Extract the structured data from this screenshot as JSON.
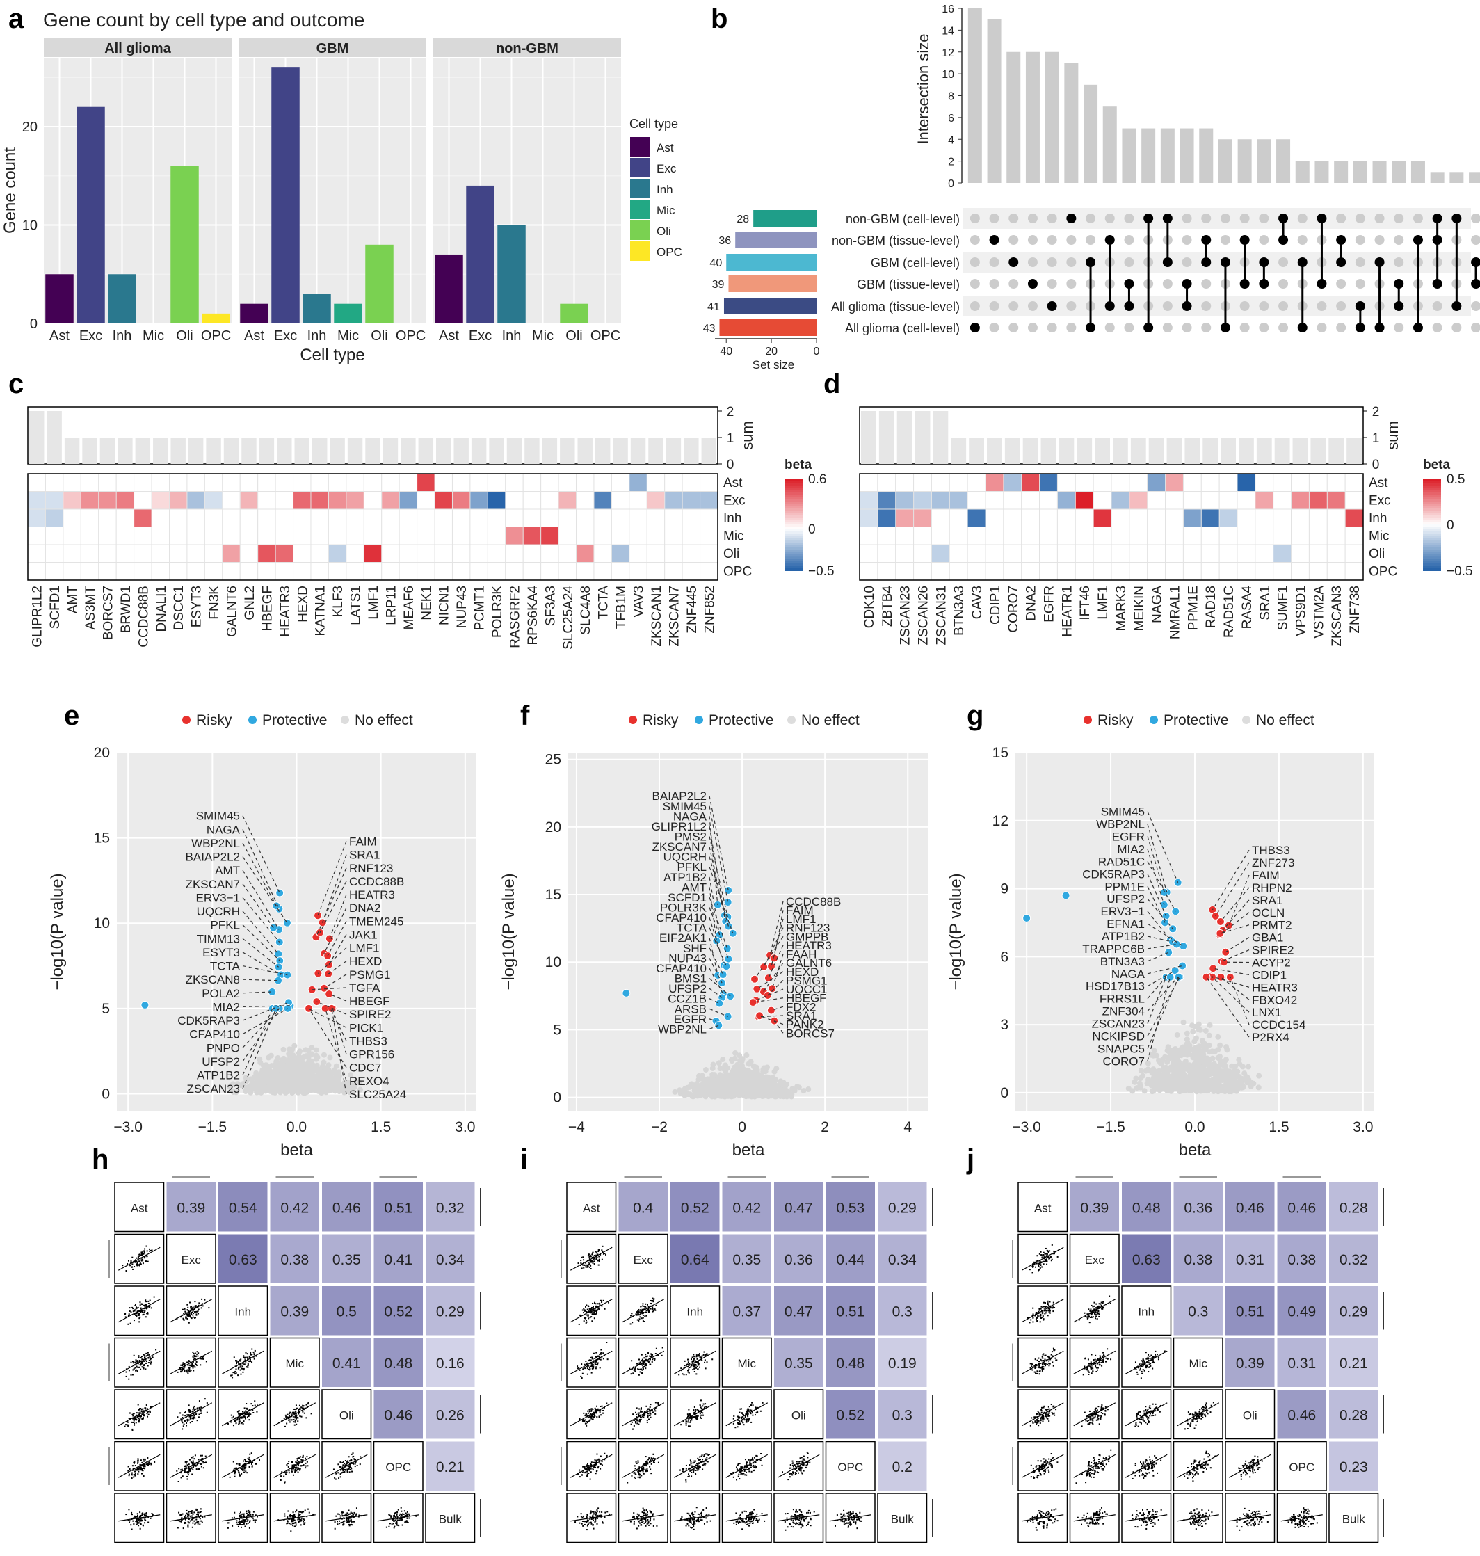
{
  "panel_labels": [
    "a",
    "b",
    "c",
    "d",
    "e",
    "f",
    "g",
    "h",
    "i",
    "j"
  ],
  "panel_a": {
    "title": "Gene count by cell type and outcome",
    "xlabel": "Cell type",
    "ylabel": "Gene count",
    "facets": [
      "All glioma",
      "GBM",
      "non-GBM"
    ],
    "categories": [
      "Ast",
      "Exc",
      "Inh",
      "Mic",
      "Oli",
      "OPC"
    ],
    "yticks": [
      "0",
      "10",
      "20"
    ],
    "legend_title": "Cell type",
    "colors": {
      "Ast": "#440154",
      "Exc": "#414487",
      "Inh": "#2a788e",
      "Mic": "#22a884",
      "Oli": "#7ad151",
      "OPC": "#fde725"
    }
  },
  "panel_b": {
    "ylabel": "Intersection size",
    "yticks": [
      "0",
      "2",
      "4",
      "6",
      "8",
      "10",
      "12",
      "14",
      "16"
    ],
    "set_size_label": "Set size",
    "set_size_ticks": [
      "40",
      "20",
      "0"
    ],
    "sets": [
      {
        "name": "non-GBM (cell-level)",
        "size": "28",
        "color": "#1f9e89"
      },
      {
        "name": "non-GBM (tissue-level)",
        "size": "36",
        "color": "#8e94bf"
      },
      {
        "name": "GBM (cell-level)",
        "size": "40",
        "color": "#4cb8d1"
      },
      {
        "name": "GBM (tissue-level)",
        "size": "39",
        "color": "#f0987a"
      },
      {
        "name": "All glioma (tissue-level)",
        "size": "41",
        "color": "#3b4b84"
      },
      {
        "name": "All glioma (cell-level)",
        "size": "43",
        "color": "#e64b35"
      }
    ]
  },
  "panel_c": {
    "sum_label": "sum",
    "sum_ticks": [
      "0",
      "1",
      "2"
    ],
    "legend_title": "beta",
    "legend_ticks": [
      "0.6",
      "0",
      "−0.5"
    ],
    "rows": [
      "Ast",
      "Exc",
      "Inh",
      "Mic",
      "Oli",
      "OPC"
    ],
    "genes": [
      "GLIPR1L2",
      "SCFD1",
      "AMT",
      "AS3MT",
      "BORCS7",
      "BRWD1",
      "CCDC88B",
      "DNALI1",
      "DSCC1",
      "ESYT3",
      "FN3K",
      "GALNT6",
      "GNL2",
      "HBEGF",
      "HEATR3",
      "HEXD",
      "KATNA1",
      "KLF3",
      "LATS1",
      "LMF1",
      "LRP11",
      "MEAF6",
      "NEK1",
      "NICN1",
      "NUP43",
      "PCMT1",
      "POLR3K",
      "RASGRF2",
      "RPS6KA4",
      "SF3A3",
      "SLC25A24",
      "SLC4A8",
      "TCTA",
      "TFB1M",
      "VAV3",
      "ZKSCAN1",
      "ZKSCAN7",
      "ZNF445",
      "ZNF852"
    ]
  },
  "panel_d": {
    "sum_label": "sum",
    "sum_ticks": [
      "0",
      "1",
      "2"
    ],
    "legend_title": "beta",
    "legend_ticks": [
      "0.5",
      "0",
      "−0.5"
    ],
    "rows": [
      "Ast",
      "Exc",
      "Inh",
      "Mic",
      "Oli",
      "OPC"
    ],
    "genes": [
      "CDK10",
      "ZBTB4",
      "ZSCAN23",
      "ZSCAN26",
      "ZSCAN31",
      "BTN3A3",
      "CAV3",
      "CDIP1",
      "CORO7",
      "DNA2",
      "EGFR",
      "HEATR1",
      "IFT46",
      "LMF1",
      "MARK3",
      "MEIKIN",
      "NAGA",
      "NMRAL1",
      "PPM1E",
      "RAD18",
      "RAD51C",
      "RASA4",
      "SRA1",
      "SUMF1",
      "VPS9D1",
      "VSTM2A",
      "ZKSCAN3",
      "ZNF738"
    ]
  },
  "legend_volcano": {
    "risky": "Risky",
    "protective": "Protective",
    "noeffect": "No effect"
  },
  "panel_e": {
    "xlabel": "beta",
    "ylabel": "−log10(P value)",
    "xticks": [
      "−3.0",
      "−1.5",
      "0.0",
      "1.5",
      "3.0"
    ],
    "yticks": [
      "0",
      "5",
      "10",
      "15",
      "20"
    ],
    "left_labels": [
      "SMIM45",
      "NAGA",
      "WBP2NL",
      "BAIAP2L2",
      "AMT",
      "ZKSCAN7",
      "ERV3−1",
      "UQCRH",
      "PFKL",
      "TIMM13",
      "ESYT3",
      "TCTA",
      "ZKSCAN8",
      "POLA2",
      "MIA2",
      "CDK5RAP3",
      "CFAP410",
      "PNPO",
      "UFSP2",
      "ATP1B2",
      "ZSCAN23"
    ],
    "right_labels": [
      "FAIM",
      "SRA1",
      "RNF123",
      "CCDC88B",
      "HEATR3",
      "DNA2",
      "TMEM245",
      "JAK1",
      "LMF1",
      "HEXD",
      "PSMG1",
      "TGFA",
      "HBEGF",
      "SPIRE2",
      "PICK1",
      "THBS3",
      "GPR156",
      "CDC7",
      "REXO4",
      "SLC25A24"
    ]
  },
  "panel_f": {
    "xlabel": "beta",
    "ylabel": "−log10(P value)",
    "xticks": [
      "−4",
      "−2",
      "0",
      "2",
      "4"
    ],
    "yticks": [
      "0",
      "5",
      "10",
      "15",
      "20",
      "25"
    ],
    "top_label": "BAIAP2L2",
    "left_labels": [
      "SMIM45",
      "NAGA",
      "GLIPR1L2",
      "PMS2",
      "ZKSCAN7",
      "UQCRH",
      "PFKL",
      "ATP1B2",
      "AMT",
      "SCFD1",
      "POLR3K",
      "CFAP410",
      "TCTA",
      "EIF2AK1",
      "SHF",
      "NUP43",
      "CFAP410",
      "BMS1",
      "UFSP2",
      "CCZ1B",
      "ARSB",
      "EGFR",
      "WBP2NL"
    ],
    "right_labels": [
      "CCDC88B",
      "FAIM",
      "LMF1",
      "RNF123",
      "GMPPB",
      "HEATR3",
      "FAAH",
      "GALNT6",
      "HEXD",
      "PSMG1",
      "UQCC1",
      "HBEGF",
      "FDX2",
      "SRA1",
      "PANK2",
      "BORCS7"
    ]
  },
  "panel_g": {
    "xlabel": "beta",
    "ylabel": "−log10(P value)",
    "xticks": [
      "−3.0",
      "−1.5",
      "0.0",
      "1.5",
      "3.0"
    ],
    "yticks": [
      "0",
      "3",
      "6",
      "9",
      "12",
      "15"
    ],
    "left_labels": [
      "SMIM45",
      "WBP2NL",
      "EGFR",
      "MIA2",
      "RAD51C",
      "CDK5RAP3",
      "PPM1E",
      "UFSP2",
      "ERV3−1",
      "EFNA1",
      "ATP1B2",
      "TRAPPC6B",
      "BTN3A3",
      "NAGA",
      "HSD17B13",
      "FRRS1L",
      "ZNF304",
      "ZSCAN23",
      "NCKIPSD",
      "SNAPC5",
      "CORO7"
    ],
    "right_labels": [
      "THBS3",
      "ZNF273",
      "FAIM",
      "RHPN2",
      "SRA1",
      "OCLN",
      "PRMT2",
      "GBA1",
      "SPIRE2",
      "ACYP2",
      "CDIP1",
      "HEATR3",
      "FBXO42",
      "LNX1",
      "CCDC154",
      "P2RX4"
    ]
  },
  "corr_labels": [
    "Ast",
    "Exc",
    "Inh",
    "Mic",
    "Oli",
    "OPC",
    "Bulk"
  ],
  "panel_h": {
    "corr": [
      [
        "0.39",
        "0.54",
        "0.42",
        "0.46",
        "0.51",
        "0.32"
      ],
      [
        "0.63",
        "0.38",
        "0.35",
        "0.41",
        "0.34"
      ],
      [
        "0.39",
        "0.5",
        "0.52",
        "0.29"
      ],
      [
        "0.41",
        "0.48",
        "0.16"
      ],
      [
        "0.46",
        "0.26"
      ],
      [
        "0.21"
      ]
    ]
  },
  "panel_i": {
    "corr": [
      [
        "0.4",
        "0.52",
        "0.42",
        "0.47",
        "0.53",
        "0.29"
      ],
      [
        "0.64",
        "0.35",
        "0.36",
        "0.44",
        "0.34"
      ],
      [
        "0.37",
        "0.47",
        "0.51",
        "0.3"
      ],
      [
        "0.35",
        "0.48",
        "0.19"
      ],
      [
        "0.52",
        "0.3"
      ],
      [
        "0.2"
      ]
    ]
  },
  "panel_j": {
    "corr": [
      [
        "0.39",
        "0.48",
        "0.36",
        "0.46",
        "0.46",
        "0.28"
      ],
      [
        "0.63",
        "0.38",
        "0.31",
        "0.38",
        "0.32"
      ],
      [
        "0.3",
        "0.51",
        "0.49",
        "0.29"
      ],
      [
        "0.39",
        "0.31",
        "0.21"
      ],
      [
        "0.46",
        "0.28"
      ],
      [
        "0.23"
      ]
    ]
  },
  "chart_data": [
    {
      "type": "bar",
      "title": "Gene count by cell type and outcome",
      "xlabel": "Cell type",
      "ylabel": "Gene count",
      "facets": [
        "All glioma",
        "GBM",
        "non-GBM"
      ],
      "categories": [
        "Ast",
        "Exc",
        "Inh",
        "Mic",
        "Oli",
        "OPC"
      ],
      "ylim": [
        0,
        27
      ],
      "series": [
        {
          "name": "All glioma",
          "values": [
            5,
            22,
            5,
            0,
            16,
            1
          ]
        },
        {
          "name": "GBM",
          "values": [
            2,
            26,
            3,
            2,
            8,
            0
          ]
        },
        {
          "name": "non-GBM",
          "values": [
            7,
            14,
            10,
            0,
            2,
            0
          ]
        }
      ]
    },
    {
      "type": "bar",
      "ylabel": "Intersection size",
      "ylim": [
        0,
        16
      ],
      "values": [
        16,
        15,
        12,
        12,
        12,
        11,
        9,
        7,
        5,
        5,
        5,
        5,
        5,
        4,
        4,
        4,
        4,
        2,
        2,
        2,
        2,
        2,
        2,
        2,
        1,
        1,
        1,
        1,
        1,
        1,
        1,
        1,
        1,
        1
      ],
      "set_sizes": [
        28,
        36,
        40,
        39,
        41,
        43
      ]
    },
    {
      "type": "heatmap",
      "rows": [
        "Ast",
        "Exc",
        "Inh",
        "Mic",
        "Oli",
        "OPC"
      ],
      "sum": [
        2,
        2,
        1,
        1,
        1,
        1,
        1,
        1,
        1,
        1,
        1,
        1,
        1,
        1,
        1,
        1,
        1,
        1,
        1,
        1,
        1,
        1,
        1,
        1,
        1,
        1,
        1,
        1,
        1,
        1,
        1,
        1,
        1,
        1,
        1,
        1,
        1,
        1,
        1
      ],
      "cells": [
        [
          0,
          1,
          -0.1
        ],
        [
          0,
          2,
          -0.1
        ],
        [
          1,
          1,
          -0.1
        ],
        [
          1,
          2,
          -0.15
        ],
        [
          2,
          1,
          0.15
        ],
        [
          3,
          1,
          0.3
        ],
        [
          4,
          1,
          0.3
        ],
        [
          5,
          1,
          0.35
        ],
        [
          6,
          2,
          0.4
        ],
        [
          7,
          1,
          0.1
        ],
        [
          8,
          1,
          0.2
        ],
        [
          9,
          1,
          -0.2
        ],
        [
          10,
          1,
          -0.1
        ],
        [
          11,
          4,
          0.25
        ],
        [
          12,
          1,
          0.2
        ],
        [
          13,
          4,
          0.45
        ],
        [
          14,
          4,
          0.4
        ],
        [
          15,
          1,
          0.4
        ],
        [
          16,
          1,
          0.4
        ],
        [
          17,
          1,
          0.3
        ],
        [
          17,
          4,
          -0.15
        ],
        [
          18,
          1,
          0.25
        ],
        [
          19,
          4,
          0.55
        ],
        [
          20,
          1,
          0.25
        ],
        [
          21,
          1,
          -0.3
        ],
        [
          22,
          0,
          0.5
        ],
        [
          23,
          1,
          0.5
        ],
        [
          24,
          1,
          0.35
        ],
        [
          25,
          1,
          -0.3
        ],
        [
          26,
          1,
          -0.5
        ],
        [
          27,
          3,
          0.3
        ],
        [
          28,
          3,
          0.45
        ],
        [
          29,
          3,
          0.5
        ],
        [
          30,
          1,
          0.2
        ],
        [
          31,
          4,
          0.3
        ],
        [
          32,
          1,
          -0.4
        ],
        [
          33,
          4,
          -0.2
        ],
        [
          34,
          0,
          -0.25
        ],
        [
          35,
          1,
          0.15
        ],
        [
          36,
          1,
          -0.2
        ],
        [
          37,
          1,
          -0.2
        ],
        [
          38,
          1,
          -0.2
        ]
      ]
    },
    {
      "type": "heatmap",
      "rows": [
        "Ast",
        "Exc",
        "Inh",
        "Mic",
        "Oli",
        "OPC"
      ],
      "sum": [
        2,
        2,
        2,
        2,
        2,
        1,
        1,
        1,
        1,
        1,
        1,
        1,
        1,
        1,
        1,
        1,
        1,
        1,
        1,
        1,
        1,
        1,
        1,
        1,
        1,
        1,
        1,
        1
      ],
      "cells": [
        [
          0,
          1,
          -0.1
        ],
        [
          0,
          2,
          -0.1
        ],
        [
          1,
          1,
          -0.4
        ],
        [
          1,
          2,
          -0.45
        ],
        [
          2,
          1,
          -0.2
        ],
        [
          2,
          2,
          0.2
        ],
        [
          3,
          1,
          -0.15
        ],
        [
          3,
          2,
          0.2
        ],
        [
          4,
          1,
          -0.2
        ],
        [
          4,
          4,
          -0.15
        ],
        [
          5,
          1,
          -0.2
        ],
        [
          6,
          2,
          -0.45
        ],
        [
          7,
          0,
          0.25
        ],
        [
          8,
          0,
          -0.2
        ],
        [
          9,
          0,
          0.4
        ],
        [
          10,
          0,
          -0.45
        ],
        [
          11,
          1,
          -0.25
        ],
        [
          12,
          1,
          0.5
        ],
        [
          13,
          2,
          0.45
        ],
        [
          14,
          1,
          -0.2
        ],
        [
          15,
          1,
          0.15
        ],
        [
          16,
          0,
          -0.3
        ],
        [
          17,
          0,
          0.2
        ],
        [
          18,
          2,
          -0.3
        ],
        [
          19,
          2,
          -0.45
        ],
        [
          20,
          2,
          -0.15
        ],
        [
          21,
          0,
          -0.5
        ],
        [
          22,
          1,
          0.2
        ],
        [
          23,
          4,
          -0.15
        ],
        [
          24,
          1,
          0.25
        ],
        [
          25,
          1,
          0.35
        ],
        [
          26,
          1,
          0.3
        ],
        [
          27,
          2,
          0.4
        ]
      ]
    },
    {
      "type": "scatter",
      "xlabel": "beta",
      "ylabel": "−log10(P value)",
      "xlim": [
        -3.2,
        3.2
      ],
      "ylim": [
        -1,
        20
      ]
    },
    {
      "type": "scatter",
      "xlabel": "beta",
      "ylabel": "−log10(P value)",
      "xlim": [
        -4.2,
        4.5
      ],
      "ylim": [
        -1,
        25.5
      ]
    },
    {
      "type": "scatter",
      "xlabel": "beta",
      "ylabel": "−log10(P value)",
      "xlim": [
        -3.2,
        3.2
      ],
      "ylim": [
        -0.8,
        15
      ]
    }
  ]
}
